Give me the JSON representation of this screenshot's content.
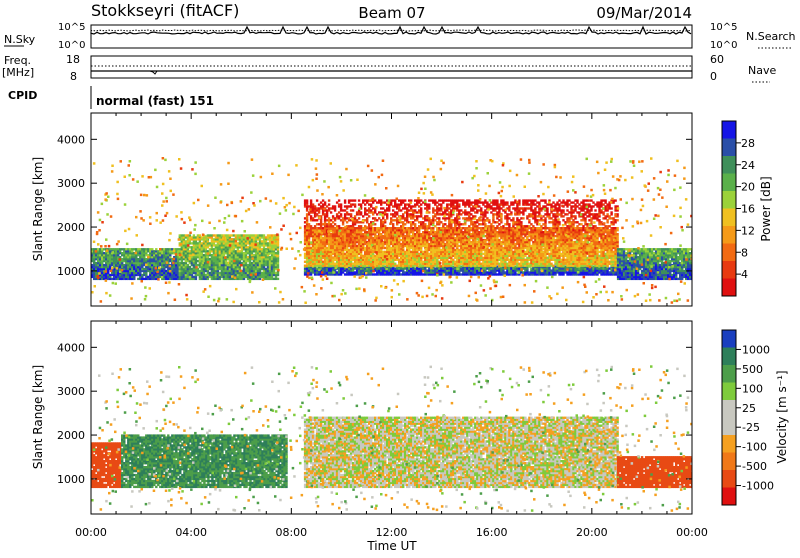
{
  "header": {
    "station": "Stokkseyri (fitACF)",
    "beam": "Beam 07",
    "date": "09/Mar/2014"
  },
  "chart_data": [
    {
      "type": "line",
      "panel": "noise",
      "left_label": "N.Sky",
      "left_ticks": [
        "10^5",
        "10^0"
      ],
      "right_label": "N.Search",
      "right_ticks": [
        "10^5",
        "10^0"
      ],
      "series": [
        {
          "name": "N.Sky",
          "style": "solid"
        },
        {
          "name": "N.Search",
          "style": "dotted"
        }
      ]
    },
    {
      "type": "line",
      "panel": "frequency",
      "left_label": "Freq.",
      "left_unit": "[MHz]",
      "left_ticks": [
        18,
        8
      ],
      "right_label": "Nave",
      "right_ticks": [
        60,
        0
      ],
      "series": [
        {
          "name": "Freq.",
          "style": "solid"
        },
        {
          "name": "Nave",
          "style": "dotted"
        }
      ]
    },
    {
      "type": "table",
      "panel": "cpid",
      "label": "CPID",
      "value": "normal (fast) 151"
    },
    {
      "type": "heatmap",
      "panel": "power",
      "ylabel": "Slant Range [km]",
      "yticks": [
        1000,
        2000,
        3000,
        4000
      ],
      "ylim": [
        200,
        4600
      ],
      "xlim": [
        0,
        24
      ],
      "colorbar_label": "Power [dB]",
      "colorbar_ticks": [
        4,
        8,
        12,
        16,
        20,
        24,
        28
      ],
      "colorbar_colors": [
        "#1515e6",
        "#2a4fa8",
        "#3f8f5a",
        "#5ab04a",
        "#9bd23a",
        "#f0c020",
        "#f59a18",
        "#f26a12",
        "#e83a10",
        "#e01010"
      ],
      "bands": [
        {
          "t": [
            0,
            3.5
          ],
          "r": [
            800,
            1500
          ],
          "level": 0.9
        },
        {
          "t": [
            3.5,
            7.5
          ],
          "r": [
            800,
            1800
          ],
          "level": 0.75
        },
        {
          "t": [
            8.5,
            21
          ],
          "r": [
            900,
            1100
          ],
          "level": 0.95
        },
        {
          "t": [
            8.5,
            21
          ],
          "r": [
            1100,
            2000
          ],
          "level": 0.45
        },
        {
          "t": [
            8.5,
            21
          ],
          "r": [
            2000,
            2600
          ],
          "level": 0.2
        },
        {
          "t": [
            21,
            24
          ],
          "r": [
            800,
            1500
          ],
          "level": 0.9
        }
      ]
    },
    {
      "type": "heatmap",
      "panel": "velocity",
      "ylabel": "Slant Range [km]",
      "yticks": [
        1000,
        2000,
        3000,
        4000
      ],
      "ylim": [
        200,
        4600
      ],
      "xlim": [
        0,
        24
      ],
      "xticks": [
        "00:00",
        "04:00",
        "08:00",
        "12:00",
        "16:00",
        "20:00",
        "00:00"
      ],
      "xlabel": "Time UT",
      "colorbar_label": "Velocity [m s⁻¹]",
      "colorbar_ticks": [
        "1000",
        "500",
        "100",
        "25",
        "-25",
        "-100",
        "-500",
        "-1000"
      ],
      "colorbar_colors": [
        "#1a3fbf",
        "#2e7f5a",
        "#4d9e4a",
        "#7ecb3c",
        "#c8c8c0",
        "#c8c8c0",
        "#f5a020",
        "#f07818",
        "#e84a14",
        "#e01010"
      ],
      "bands": [
        {
          "t": [
            0,
            1.2
          ],
          "r": [
            800,
            1800
          ],
          "v": -600
        },
        {
          "t": [
            1.2,
            7.8
          ],
          "r": [
            800,
            2000
          ],
          "v": 300
        },
        {
          "t": [
            8.5,
            21
          ],
          "r": [
            800,
            2400
          ],
          "v": 0
        },
        {
          "t": [
            21,
            24
          ],
          "r": [
            800,
            1500
          ],
          "v": -700
        }
      ]
    }
  ]
}
